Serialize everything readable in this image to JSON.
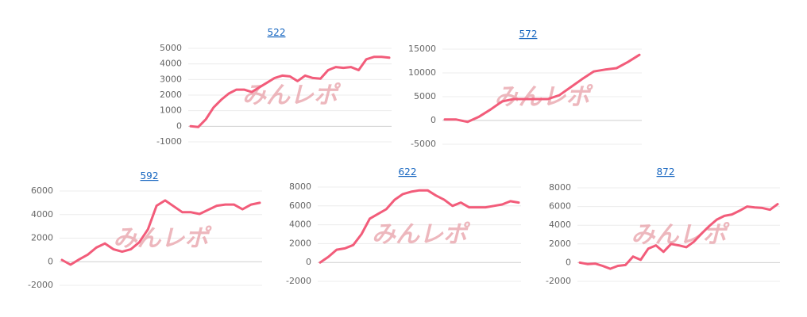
{
  "chart_data": [
    {
      "type": "line",
      "title": "522",
      "watermark": "みんレポ",
      "color": "#f25c7a",
      "grid": true,
      "ylim": [
        -1000,
        5000
      ],
      "yticks": [
        5000,
        4000,
        3000,
        2000,
        1000,
        0,
        -1000
      ],
      "values": [
        0,
        -50,
        450,
        1200,
        1700,
        2100,
        2350,
        2350,
        2200,
        2500,
        2800,
        3100,
        3250,
        3200,
        2900,
        3250,
        3100,
        3050,
        3600,
        3800,
        3750,
        3800,
        3600,
        4300,
        4450,
        4450,
        4400
      ]
    },
    {
      "type": "line",
      "title": "572",
      "watermark": "みんレポ",
      "color": "#f25c7a",
      "grid": true,
      "ylim": [
        -5000,
        15000
      ],
      "yticks": [
        15000,
        10000,
        5000,
        0,
        -5000
      ],
      "values": [
        200,
        200,
        -300,
        800,
        2300,
        4000,
        4500,
        4500,
        4500,
        4500,
        5300,
        7000,
        8700,
        10300,
        10700,
        11000,
        12300,
        13800
      ]
    },
    {
      "type": "line",
      "title": "592",
      "watermark": "みんレポ",
      "color": "#f25c7a",
      "grid": true,
      "ylim": [
        -2000,
        6000
      ],
      "yticks": [
        6000,
        4000,
        2000,
        0,
        -2000
      ],
      "values": [
        150,
        -250,
        200,
        600,
        1200,
        1550,
        1050,
        850,
        1050,
        1650,
        2750,
        4750,
        5200,
        4700,
        4200,
        4200,
        4050,
        4400,
        4750,
        4850,
        4850,
        4450,
        4850,
        5000
      ]
    },
    {
      "type": "line",
      "title": "622",
      "watermark": "みんレポ",
      "color": "#f25c7a",
      "grid": true,
      "ylim": [
        -2000,
        8000
      ],
      "yticks": [
        8000,
        6000,
        4000,
        2000,
        0,
        -2000
      ],
      "values": [
        0,
        600,
        1350,
        1500,
        1850,
        3000,
        4650,
        5150,
        5650,
        6650,
        7250,
        7500,
        7650,
        7650,
        7100,
        6650,
        6000,
        6350,
        5850,
        5850,
        5850,
        6000,
        6150,
        6500,
        6350
      ]
    },
    {
      "type": "line",
      "title": "872",
      "watermark": "みんレポ",
      "color": "#f25c7a",
      "grid": true,
      "ylim": [
        -2000,
        8000
      ],
      "yticks": [
        8000,
        6000,
        4000,
        2000,
        0,
        -2000
      ],
      "values": [
        0,
        -150,
        -100,
        -350,
        -650,
        -350,
        -250,
        650,
        300,
        1500,
        1850,
        1150,
        2000,
        1850,
        1650,
        2250,
        3100,
        3900,
        4600,
        5000,
        5150,
        5550,
        6000,
        5900,
        5850,
        5650,
        6250
      ]
    }
  ]
}
